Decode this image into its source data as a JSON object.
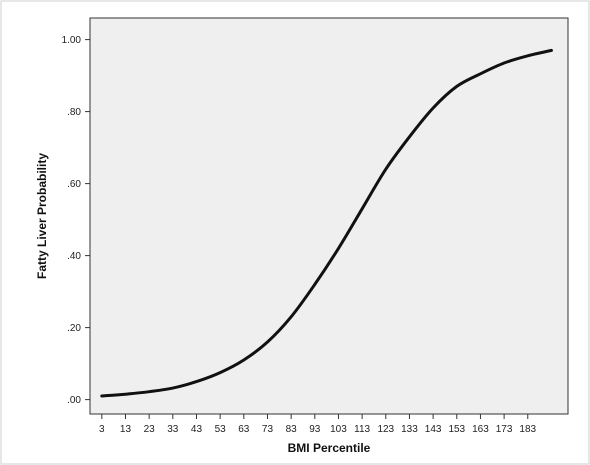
{
  "chart_data": {
    "type": "line",
    "title": "",
    "xlabel": "BMI Percentile",
    "ylabel": "Fatty Liver Probability",
    "xlim": [
      -2,
      200
    ],
    "ylim": [
      -0.04,
      1.06
    ],
    "x_ticks": [
      3,
      13,
      23,
      33,
      43,
      53,
      63,
      73,
      83,
      93,
      103,
      113,
      123,
      133,
      143,
      153,
      163,
      173,
      183
    ],
    "y_ticks": [
      0,
      0.2,
      0.4,
      0.6,
      0.8,
      1.0
    ],
    "y_tick_labels": [
      ".00",
      ".20",
      ".40",
      ".60",
      ".80",
      "1.00"
    ],
    "grid": false,
    "legend": "none",
    "colors": {
      "plot_background": "#efefef",
      "line": "#111111",
      "frame": "#333333"
    },
    "series": [
      {
        "x": [
          3,
          13,
          23,
          33,
          43,
          53,
          63,
          73,
          83,
          93,
          103,
          113,
          123,
          133,
          143,
          153,
          163,
          173,
          183,
          193
        ],
        "y": [
          0.01,
          0.015,
          0.022,
          0.032,
          0.05,
          0.075,
          0.11,
          0.16,
          0.23,
          0.32,
          0.42,
          0.53,
          0.64,
          0.73,
          0.81,
          0.87,
          0.905,
          0.935,
          0.955,
          0.97
        ]
      }
    ]
  }
}
